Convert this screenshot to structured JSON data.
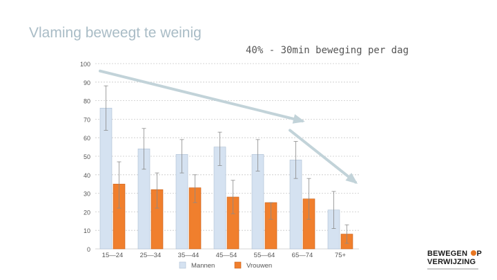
{
  "slide": {
    "title": "Vlaming beweegt te weinig",
    "subtitle": "40% - 30min beweging per dag"
  },
  "logo": {
    "line1_a": "BEWEGEN",
    "line1_b": "P",
    "line2": "VERWIJZING"
  },
  "colors": {
    "mannen": "#d5e2f1",
    "mannen_stroke": "#aebfd3",
    "vrouwen": "#f07f2d",
    "vrouwen_stroke": "#c8631f",
    "arrow": "#c2d3d9",
    "grid": "#c8c8c8",
    "axis_text": "#555555"
  },
  "chart_data": {
    "type": "bar",
    "categories": [
      "15—24",
      "25—34",
      "35—44",
      "45—54",
      "55—64",
      "65—74",
      "75+"
    ],
    "series": [
      {
        "name": "Mannen",
        "values": [
          76,
          54,
          51,
          55,
          51,
          48,
          21
        ],
        "error_low": [
          64,
          43,
          41,
          45,
          42,
          38,
          11
        ],
        "error_high": [
          88,
          65,
          59,
          63,
          59,
          58,
          31
        ]
      },
      {
        "name": "Vrouwen",
        "values": [
          35,
          32,
          33,
          28,
          25,
          27,
          8
        ],
        "error_low": [
          22,
          22,
          25,
          19,
          16,
          16,
          3
        ],
        "error_high": [
          47,
          41,
          40,
          37,
          25,
          38,
          13
        ]
      }
    ],
    "y_ticks": [
      "0",
      "10",
      "20",
      "30",
      "40",
      "50",
      "60",
      "70",
      "80",
      "90",
      "100"
    ],
    "ylim": [
      0,
      100
    ],
    "grid": true,
    "legend": "bottom",
    "annotations": [
      {
        "type": "arrow",
        "from": {
          "category": 0,
          "value": 96
        },
        "to": {
          "category": 5,
          "value": 69
        }
      },
      {
        "type": "arrow",
        "from": {
          "category": 5,
          "value": 64
        },
        "to": {
          "category": 6,
          "value": 36
        }
      }
    ]
  }
}
